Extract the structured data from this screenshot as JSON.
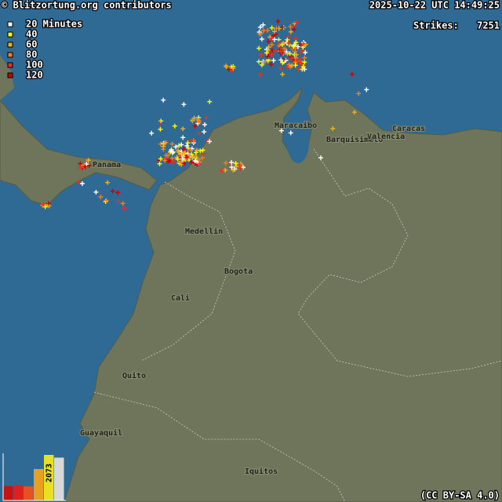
{
  "header": {
    "source": "© Blitzortung.org contributors",
    "timestamp": "2025-10-22 UTC 14:49:25",
    "strikes_label": "Strikes:",
    "strikes": 7251
  },
  "legend": [
    {
      "label": "20 Minutes",
      "color": "#ffffff"
    },
    {
      "label": "40",
      "color": "#ffff00"
    },
    {
      "label": "60",
      "color": "#f0b020"
    },
    {
      "label": "80",
      "color": "#f08020"
    },
    {
      "label": "100",
      "color": "#e83020"
    },
    {
      "label": "120",
      "color": "#cc0000"
    }
  ],
  "cities": [
    "Maracaibo",
    "Barquisimeto",
    "Valencia",
    "Caracas",
    "Panama",
    "Medellin",
    "Bogota",
    "Cali",
    "Quito",
    "Guayaquil",
    "Iquitos"
  ],
  "histogram": {
    "values": [
      650,
      700,
      640,
      1430,
      2073,
      1950
    ],
    "colors": [
      "#cc1010",
      "#dd2020",
      "#e85020",
      "#e8a020",
      "#e8e020",
      "#d8d8d8"
    ]
  },
  "license": "(CC BY-SA 4.0)"
}
